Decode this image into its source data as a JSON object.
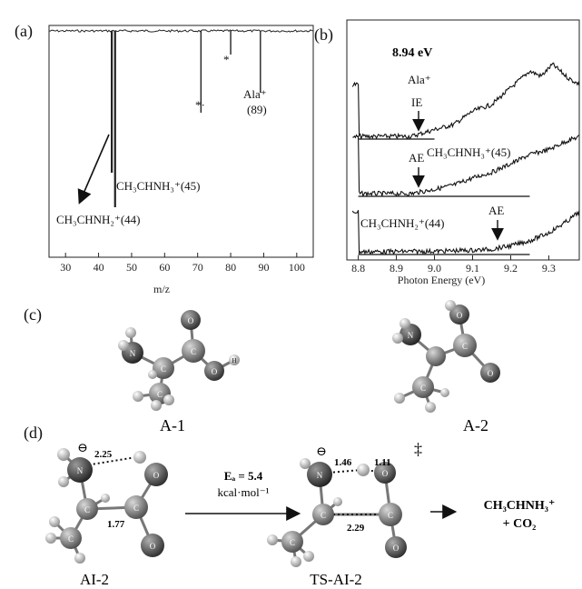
{
  "panels": {
    "a": "(a)",
    "b": "(b)",
    "c": "(c)",
    "d": "(d)"
  },
  "chart_data": [
    {
      "type": "line",
      "panel": "(a)",
      "xlabel": "m/z",
      "xlim": [
        25,
        105
      ],
      "x_ticks": [
        "30",
        "40",
        "50",
        "60",
        "70",
        "80",
        "90",
        "100"
      ],
      "peaks": [
        {
          "mz": 44,
          "depth": 0.78
        },
        {
          "mz": 45,
          "depth": 0.97
        },
        {
          "mz": 71,
          "depth": 0.45
        },
        {
          "mz": 80,
          "depth": 0.13
        },
        {
          "mz": 89,
          "depth": 0.34
        }
      ],
      "annotations": [
        {
          "text": "CH₃CHNH₂⁺(44)",
          "mz": 44
        },
        {
          "text": "CH₃CHNH₃⁺(45)",
          "mz": 45
        },
        {
          "text": "*·",
          "mz": 71
        },
        {
          "text": "*",
          "mz": 80
        },
        {
          "text": "Ala⁺",
          "mz": 89
        },
        {
          "text": "(89)",
          "mz": 89
        }
      ]
    },
    {
      "type": "line",
      "panel": "(b)",
      "xlabel": "Photon Energy (eV)",
      "xlim": [
        8.77,
        9.38
      ],
      "x_ticks": [
        "8.8",
        "8.9",
        "9.0",
        "9.1",
        "9.2",
        "9.3"
      ],
      "series": [
        {
          "name": "Ala⁺",
          "onset": 8.94,
          "x": [
            8.8,
            8.94,
            9.0,
            9.05,
            9.1,
            9.15,
            9.2,
            9.25,
            9.28,
            9.31,
            9.35,
            9.38
          ],
          "y": [
            0,
            0,
            0.08,
            0.14,
            0.3,
            0.38,
            0.58,
            0.78,
            0.72,
            0.86,
            0.7,
            0.62
          ]
        },
        {
          "name": "CH₃CHNH₃⁺(45)",
          "onset": 8.94,
          "x": [
            8.8,
            8.94,
            9.0,
            9.05,
            9.1,
            9.15,
            9.2,
            9.25,
            9.3,
            9.35,
            9.38
          ],
          "y": [
            0,
            0,
            0.06,
            0.12,
            0.22,
            0.3,
            0.42,
            0.55,
            0.62,
            0.75,
            0.8
          ]
        },
        {
          "name": "CH₃CHNH₂⁺(44)",
          "onset": 9.15,
          "x": [
            8.8,
            9.0,
            9.1,
            9.15,
            9.2,
            9.25,
            9.3,
            9.35,
            9.38
          ],
          "y": [
            0,
            0.01,
            0.03,
            0.05,
            0.12,
            0.22,
            0.38,
            0.62,
            0.8
          ]
        }
      ],
      "annotations": [
        "8.94 eV",
        "Ala⁺",
        "IE",
        "AE",
        "CH₃CHNH₃⁺(45)",
        "CH₃CHNH₂⁺(44)",
        "AE"
      ]
    }
  ],
  "structures": {
    "a1_label": "A-1",
    "a2_label": "A-2",
    "ai2_label": "AI-2",
    "ts_label": "TS-AI-2",
    "atom_H": "H",
    "atom_N": "N",
    "atom_C": "C",
    "atom_O": "O",
    "dist_225": "2.25",
    "dist_177": "1.77",
    "dist_146": "1.46",
    "dist_111": "1.11",
    "dist_229": "2.29",
    "charge": "⊖",
    "dagger": "‡",
    "ea_label": "Eₐ = 5.4",
    "ea_unit": "kcal·mol⁻¹",
    "product_line1": "CH₃CHNH₃⁺",
    "product_line2": "+ CO₂"
  }
}
